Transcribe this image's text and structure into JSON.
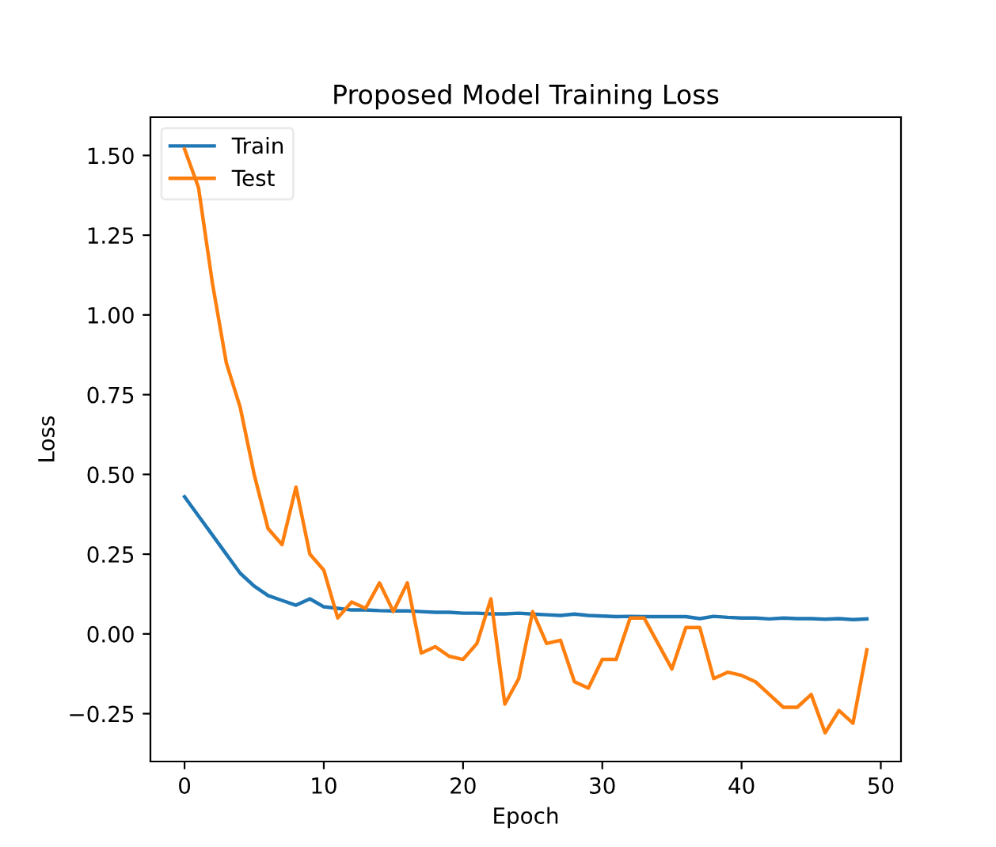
{
  "chart_data": {
    "type": "line",
    "title": "Proposed Model Training Loss",
    "xlabel": "Epoch",
    "ylabel": "Loss",
    "x": [
      0,
      1,
      2,
      3,
      4,
      5,
      6,
      7,
      8,
      9,
      10,
      11,
      12,
      13,
      14,
      15,
      16,
      17,
      18,
      19,
      20,
      21,
      22,
      23,
      24,
      25,
      26,
      27,
      28,
      29,
      30,
      31,
      32,
      33,
      34,
      35,
      36,
      37,
      38,
      39,
      40,
      41,
      42,
      43,
      44,
      45,
      46,
      47,
      48,
      49
    ],
    "series": [
      {
        "name": "Train",
        "color": "#1f77b4",
        "values": [
          0.43,
          0.37,
          0.31,
          0.25,
          0.19,
          0.15,
          0.12,
          0.105,
          0.09,
          0.11,
          0.085,
          0.08,
          0.075,
          0.075,
          0.073,
          0.072,
          0.072,
          0.07,
          0.068,
          0.068,
          0.065,
          0.065,
          0.063,
          0.063,
          0.065,
          0.062,
          0.06,
          0.058,
          0.062,
          0.058,
          0.056,
          0.054,
          0.055,
          0.054,
          0.054,
          0.054,
          0.054,
          0.048,
          0.055,
          0.052,
          0.05,
          0.05,
          0.047,
          0.05,
          0.048,
          0.048,
          0.046,
          0.048,
          0.045,
          0.047
        ]
      },
      {
        "name": "Test",
        "color": "#ff7f0e",
        "values": [
          1.52,
          1.4,
          1.1,
          0.85,
          0.71,
          0.5,
          0.33,
          0.28,
          0.46,
          0.25,
          0.2,
          0.05,
          0.1,
          0.08,
          0.16,
          0.07,
          0.16,
          -0.06,
          -0.04,
          -0.07,
          -0.08,
          -0.03,
          0.11,
          -0.22,
          -0.14,
          0.07,
          -0.03,
          -0.02,
          -0.15,
          -0.17,
          -0.08,
          -0.08,
          0.05,
          0.05,
          -0.03,
          -0.11,
          0.02,
          0.02,
          -0.14,
          -0.12,
          -0.13,
          -0.15,
          -0.19,
          -0.23,
          -0.23,
          -0.19,
          -0.31,
          -0.24,
          -0.28,
          -0.05
        ]
      }
    ],
    "xlim": [
      -2.45,
      51.45
    ],
    "ylim": [
      -0.4,
      1.62
    ],
    "xticks": [
      0,
      10,
      20,
      30,
      40,
      50
    ],
    "yticks": [
      {
        "value": -0.25,
        "label": "−0.25"
      },
      {
        "value": 0,
        "label": "0.00"
      },
      {
        "value": 0.25,
        "label": "0.25"
      },
      {
        "value": 0.5,
        "label": "0.50"
      },
      {
        "value": 0.75,
        "label": "0.75"
      },
      {
        "value": 1.0,
        "label": "1.00"
      },
      {
        "value": 1.25,
        "label": "1.25"
      },
      {
        "value": 1.5,
        "label": "1.50"
      }
    ],
    "legend": "upper left",
    "grid": false
  }
}
